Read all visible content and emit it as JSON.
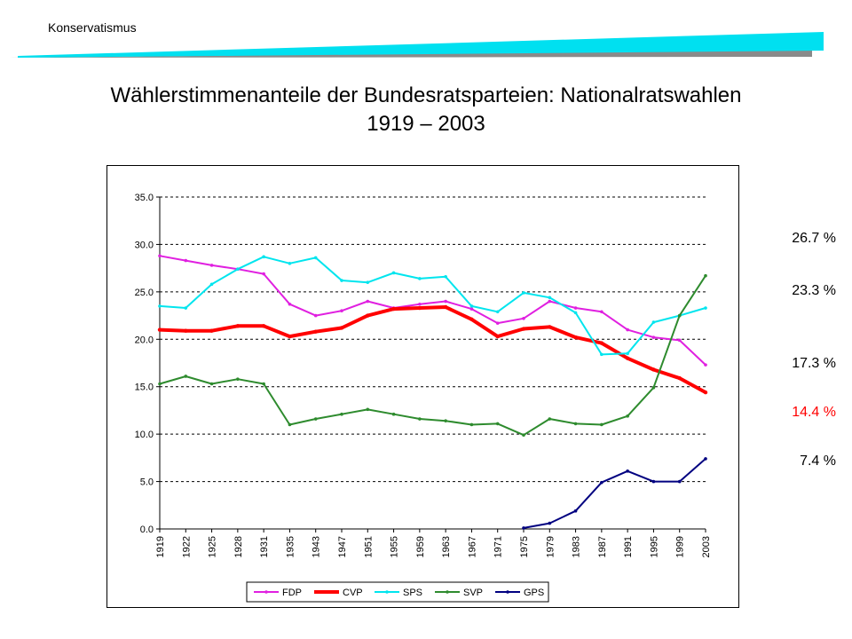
{
  "header": {
    "label": "Konservatismus"
  },
  "title_line1": "Wählerstimmenanteile der Bundesratsparteien: Nationalratswahlen",
  "title_line2": "1919 – 2003",
  "side_labels": [
    {
      "text": "26.7 %",
      "color": "#000000",
      "value": 26.7
    },
    {
      "text": "23.3 %",
      "color": "#000000",
      "value": 23.3
    },
    {
      "text": "17.3 %",
      "color": "#000000",
      "value": 17.3
    },
    {
      "text": "14.4 %",
      "color": "#ff0000",
      "value": 14.4
    },
    {
      "text": "7.4 %",
      "color": "#000000",
      "value": 7.4
    }
  ],
  "chart_data": {
    "type": "line",
    "categories": [
      "1919",
      "1922",
      "1925",
      "1928",
      "1931",
      "1935",
      "1943",
      "1947",
      "1951",
      "1955",
      "1959",
      "1963",
      "1967",
      "1971",
      "1975",
      "1979",
      "1983",
      "1987",
      "1991",
      "1995",
      "1999",
      "2003"
    ],
    "ylim": [
      0,
      35
    ],
    "yticks": [
      "0.0",
      "5.0",
      "10.0",
      "15.0",
      "20.0",
      "25.0",
      "30.0",
      "35.0"
    ],
    "grid": true,
    "legend_position": "bottom",
    "series": [
      {
        "name": "FDP",
        "color": "#e020e0",
        "values": [
          28.8,
          28.3,
          27.8,
          27.4,
          26.9,
          23.7,
          22.5,
          23.0,
          24.0,
          23.3,
          23.7,
          24.0,
          23.2,
          21.7,
          22.2,
          24.0,
          23.3,
          22.9,
          21.0,
          20.2,
          19.9,
          17.3
        ]
      },
      {
        "name": "CVP",
        "color": "#ff0000",
        "values": [
          21.0,
          20.9,
          20.9,
          21.4,
          21.4,
          20.3,
          20.8,
          21.2,
          22.5,
          23.2,
          23.3,
          23.4,
          22.1,
          20.3,
          21.1,
          21.3,
          20.2,
          19.6,
          18.0,
          16.8,
          15.9,
          14.4
        ]
      },
      {
        "name": "SPS",
        "color": "#00e5ee",
        "values": [
          23.5,
          23.3,
          25.8,
          27.4,
          28.7,
          28.0,
          28.6,
          26.2,
          26.0,
          27.0,
          26.4,
          26.6,
          23.5,
          22.9,
          24.9,
          24.4,
          22.8,
          18.4,
          18.5,
          21.8,
          22.5,
          23.3
        ]
      },
      {
        "name": "SVP",
        "color": "#2e8b2e",
        "values": [
          15.3,
          16.1,
          15.3,
          15.8,
          15.3,
          11.0,
          11.6,
          12.1,
          12.6,
          12.1,
          11.6,
          11.4,
          11.0,
          11.1,
          9.9,
          11.6,
          11.1,
          11.0,
          11.9,
          14.9,
          22.5,
          26.7
        ]
      },
      {
        "name": "GPS",
        "color": "#000080",
        "values": [
          null,
          null,
          null,
          null,
          null,
          null,
          null,
          null,
          null,
          null,
          null,
          null,
          null,
          null,
          0.1,
          0.6,
          1.9,
          4.9,
          6.1,
          5.0,
          5.0,
          7.4
        ]
      }
    ]
  }
}
